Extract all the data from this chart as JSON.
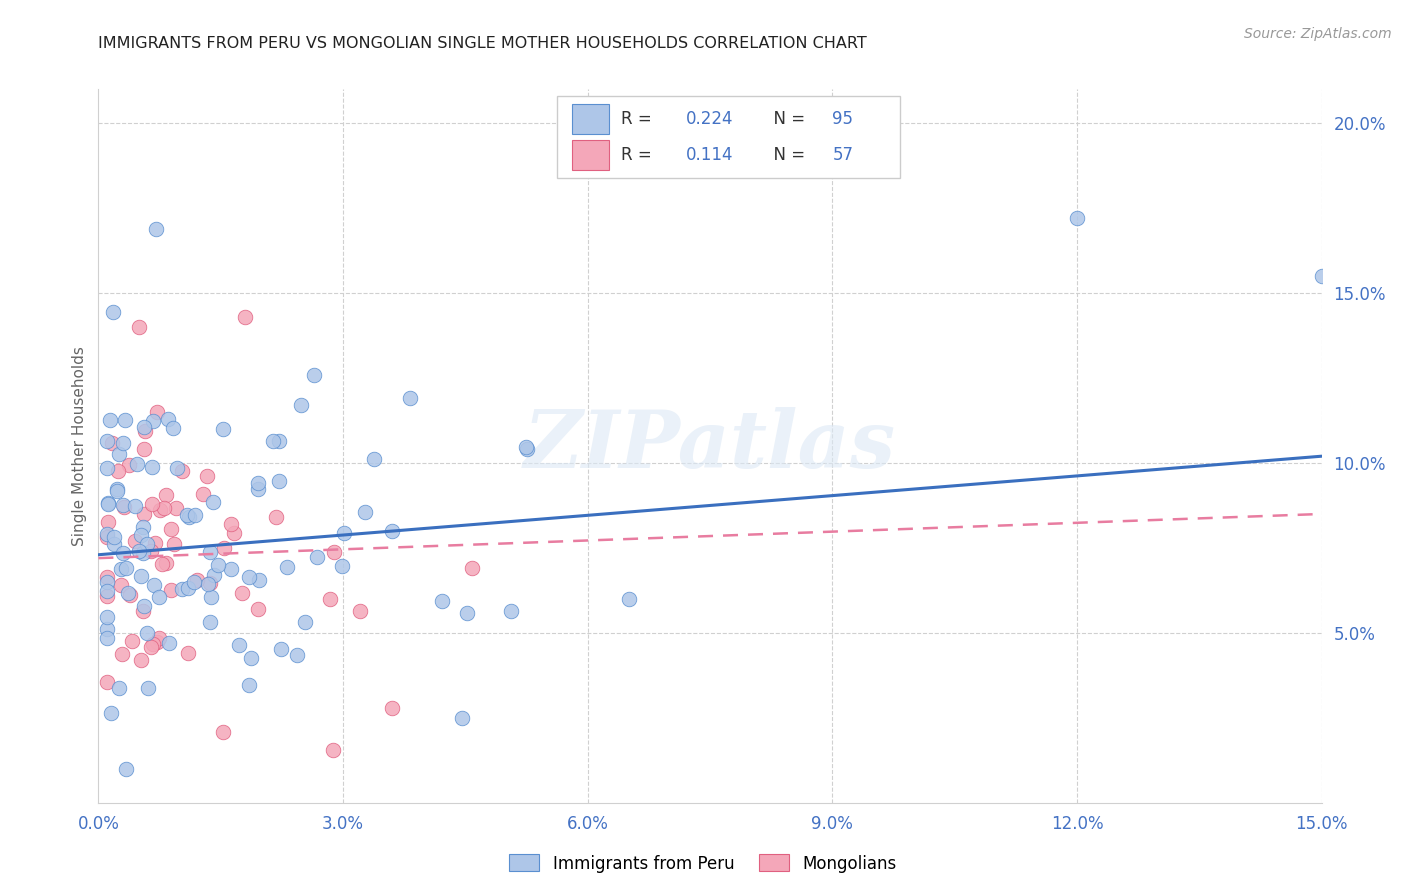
{
  "title": "IMMIGRANTS FROM PERU VS MONGOLIAN SINGLE MOTHER HOUSEHOLDS CORRELATION CHART",
  "source": "Source: ZipAtlas.com",
  "ylabel": "Single Mother Households",
  "xlim": [
    0.0,
    0.15
  ],
  "ylim": [
    0.0,
    0.21
  ],
  "xticks": [
    0.0,
    0.03,
    0.06,
    0.09,
    0.12,
    0.15
  ],
  "yticks": [
    0.05,
    0.1,
    0.15,
    0.2
  ],
  "xtick_labels": [
    "0.0%",
    "3.0%",
    "6.0%",
    "9.0%",
    "12.0%",
    "15.0%"
  ],
  "ytick_labels": [
    "5.0%",
    "10.0%",
    "15.0%",
    "20.0%"
  ],
  "peru_R": 0.224,
  "peru_N": 95,
  "mongolian_R": 0.114,
  "mongolian_N": 57,
  "peru_color": "#aec6e8",
  "mongolian_color": "#f4a7b9",
  "peru_line_color": "#3a6fbf",
  "mongolian_line_color": "#e87ca0",
  "watermark": "ZIPatlas",
  "legend_R1": "R = ",
  "legend_R1_val": "0.224",
  "legend_N1": "N = ",
  "legend_N1_val": "95",
  "legend_R2": "R =  ",
  "legend_R2_val": "0.114",
  "legend_N2": "N = ",
  "legend_N2_val": "57",
  "peru_line_y0": 0.073,
  "peru_line_y1": 0.102,
  "mong_line_y0": 0.072,
  "mong_line_y1": 0.085
}
